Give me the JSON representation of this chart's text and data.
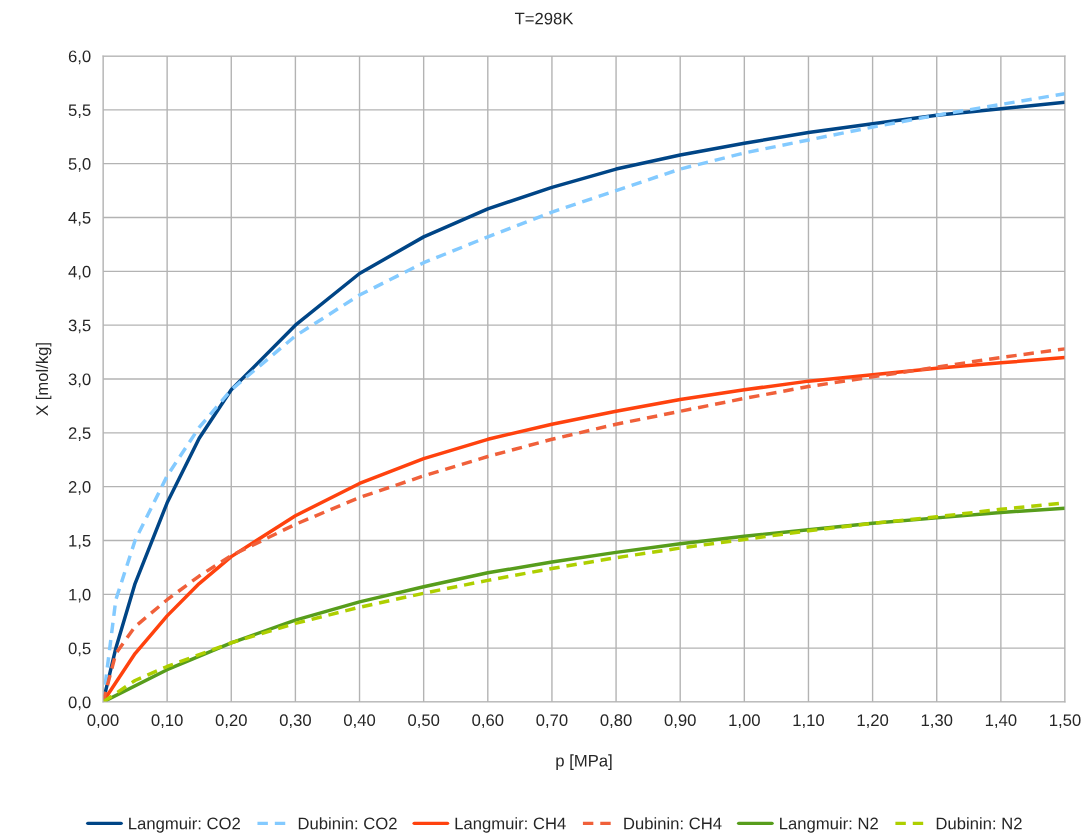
{
  "chart_data": {
    "type": "line",
    "title": "T=298K",
    "xlabel": "p [MPa]",
    "ylabel": "X [mol/kg]",
    "xlim": [
      0,
      1.5
    ],
    "ylim": [
      0,
      6
    ],
    "xticks": [
      {
        "value": 0,
        "label": "0,00"
      },
      {
        "value": 0.1,
        "label": "0,10"
      },
      {
        "value": 0.2,
        "label": "0,20"
      },
      {
        "value": 0.3,
        "label": "0,30"
      },
      {
        "value": 0.4,
        "label": "0,40"
      },
      {
        "value": 0.5,
        "label": "0,50"
      },
      {
        "value": 0.6,
        "label": "0,60"
      },
      {
        "value": 0.7,
        "label": "0,70"
      },
      {
        "value": 0.8,
        "label": "0,80"
      },
      {
        "value": 0.9,
        "label": "0,90"
      },
      {
        "value": 1.0,
        "label": "1,00"
      },
      {
        "value": 1.1,
        "label": "1,10"
      },
      {
        "value": 1.2,
        "label": "1,20"
      },
      {
        "value": 1.3,
        "label": "1,30"
      },
      {
        "value": 1.4,
        "label": "1,40"
      },
      {
        "value": 1.5,
        "label": "1,50"
      }
    ],
    "yticks": [
      {
        "value": 0,
        "label": "0,0"
      },
      {
        "value": 0.5,
        "label": "0,5"
      },
      {
        "value": 1.0,
        "label": "1,0"
      },
      {
        "value": 1.5,
        "label": "1,5"
      },
      {
        "value": 2.0,
        "label": "2,0"
      },
      {
        "value": 2.5,
        "label": "2,5"
      },
      {
        "value": 3.0,
        "label": "3,0"
      },
      {
        "value": 3.5,
        "label": "3,5"
      },
      {
        "value": 4.0,
        "label": "4,0"
      },
      {
        "value": 4.5,
        "label": "4,5"
      },
      {
        "value": 5.0,
        "label": "5,0"
      },
      {
        "value": 5.5,
        "label": "5,5"
      },
      {
        "value": 6.0,
        "label": "6,0"
      }
    ],
    "grid": true,
    "legend": "bottom",
    "marker": "none",
    "series": [
      {
        "name": "Langmuir: CO2",
        "color": "#004586",
        "line_style": "solid",
        "x": [
          0,
          0.02,
          0.05,
          0.1,
          0.15,
          0.2,
          0.3,
          0.4,
          0.5,
          0.6,
          0.7,
          0.8,
          0.9,
          1.0,
          1.1,
          1.2,
          1.3,
          1.4,
          1.5
        ],
        "values": [
          0,
          0.5,
          1.1,
          1.85,
          2.45,
          2.9,
          3.5,
          3.98,
          4.32,
          4.58,
          4.78,
          4.95,
          5.08,
          5.19,
          5.29,
          5.37,
          5.45,
          5.51,
          5.57
        ]
      },
      {
        "name": "Dubinin: CO2",
        "color": "#83caff",
        "line_style": "dashed",
        "x": [
          0,
          0.02,
          0.05,
          0.1,
          0.15,
          0.2,
          0.3,
          0.4,
          0.5,
          0.6,
          0.7,
          0.8,
          0.9,
          1.0,
          1.1,
          1.2,
          1.3,
          1.4,
          1.5
        ],
        "values": [
          0,
          0.95,
          1.5,
          2.1,
          2.55,
          2.9,
          3.4,
          3.78,
          4.08,
          4.32,
          4.55,
          4.75,
          4.95,
          5.1,
          5.22,
          5.34,
          5.45,
          5.55,
          5.65
        ]
      },
      {
        "name": "Langmuir: CH4",
        "color": "#ff420e",
        "line_style": "solid",
        "x": [
          0,
          0.05,
          0.1,
          0.15,
          0.2,
          0.3,
          0.4,
          0.5,
          0.6,
          0.7,
          0.8,
          0.9,
          1.0,
          1.1,
          1.2,
          1.3,
          1.4,
          1.5
        ],
        "values": [
          0,
          0.45,
          0.8,
          1.1,
          1.35,
          1.73,
          2.03,
          2.26,
          2.44,
          2.58,
          2.7,
          2.81,
          2.9,
          2.98,
          3.04,
          3.1,
          3.15,
          3.2
        ]
      },
      {
        "name": "Dubinin: CH4",
        "color": "#f0603a",
        "line_style": "dashed",
        "x": [
          0,
          0.02,
          0.05,
          0.1,
          0.15,
          0.2,
          0.3,
          0.4,
          0.5,
          0.6,
          0.7,
          0.8,
          0.9,
          1.0,
          1.1,
          1.2,
          1.3,
          1.4,
          1.5
        ],
        "values": [
          0,
          0.45,
          0.7,
          0.95,
          1.17,
          1.36,
          1.65,
          1.9,
          2.1,
          2.28,
          2.44,
          2.58,
          2.7,
          2.82,
          2.93,
          3.02,
          3.11,
          3.2,
          3.28
        ]
      },
      {
        "name": "Langmuir: N2",
        "color": "#579d1c",
        "line_style": "solid",
        "x": [
          0,
          0.1,
          0.2,
          0.3,
          0.4,
          0.5,
          0.6,
          0.7,
          0.8,
          0.9,
          1.0,
          1.1,
          1.2,
          1.3,
          1.4,
          1.5
        ],
        "values": [
          0,
          0.3,
          0.55,
          0.76,
          0.93,
          1.07,
          1.2,
          1.3,
          1.39,
          1.47,
          1.54,
          1.6,
          1.66,
          1.71,
          1.76,
          1.8
        ]
      },
      {
        "name": "Dubinin: N2",
        "color": "#aecf00",
        "line_style": "dashed",
        "x": [
          0,
          0.05,
          0.1,
          0.2,
          0.3,
          0.4,
          0.5,
          0.6,
          0.7,
          0.8,
          0.9,
          1.0,
          1.1,
          1.2,
          1.3,
          1.4,
          1.5
        ],
        "values": [
          0,
          0.2,
          0.33,
          0.55,
          0.73,
          0.88,
          1.01,
          1.13,
          1.24,
          1.34,
          1.43,
          1.51,
          1.59,
          1.66,
          1.72,
          1.79,
          1.85
        ]
      }
    ]
  }
}
